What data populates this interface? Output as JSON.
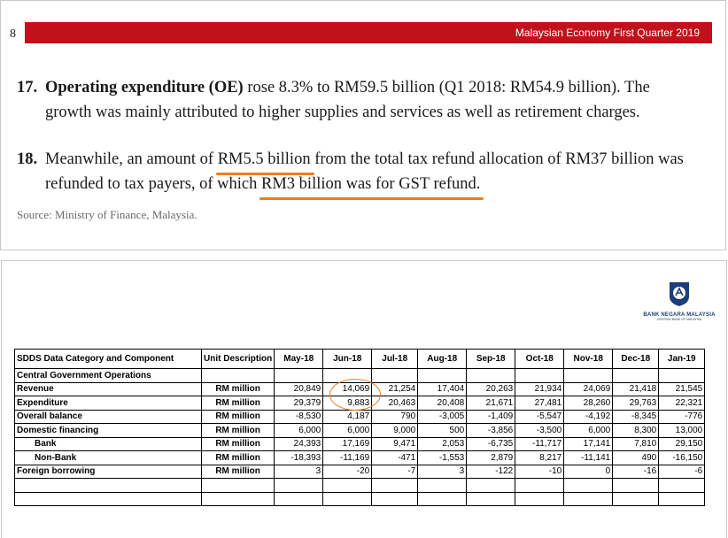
{
  "header": {
    "page_number": "8",
    "title": "Malaysian Economy First Quarter 2019",
    "bar_color": "#c1121c"
  },
  "paragraphs": {
    "p17": {
      "number": "17.",
      "bold_lead": "Operating expenditure (OE)",
      "line1_rest": " rose 8.3% to RM59.5 billion (Q1 2018: RM54.9 billion). The",
      "line2": "growth was mainly attributed to higher supplies and services as well as retirement charges."
    },
    "p18": {
      "number": "18.",
      "line1_pre": "Meanwhile, an amount of ",
      "line1_hl": "RM5.5 billion",
      "line1_post": " from the total tax refund allocation of RM37 billion was",
      "line2_pre": "refunded to tax payers, of which ",
      "line2_hl": "RM3 billion was for GST refund."
    },
    "source": "Source: Ministry of Finance, Malaysia."
  },
  "highlight_color": "#f07c1e",
  "logo": {
    "icon": "bnm-shield-icon",
    "name": "BANK NEGARA MALAYSIA",
    "subtitle": "CENTRAL BANK OF MALAYSIA"
  },
  "table": {
    "headers": [
      "SDDS Data Category and Component",
      "Unit Description",
      "May-18",
      "Jun-18",
      "Jul-18",
      "Aug-18",
      "Sep-18",
      "Oct-18",
      "Nov-18",
      "Dec-18",
      "Jan-19"
    ],
    "section": "Central Government Operations",
    "rows": [
      {
        "label": "Revenue",
        "unit": "RM million",
        "values": [
          "20,849",
          "14,069",
          "21,254",
          "17,404",
          "20,263",
          "21,934",
          "24,069",
          "21,418",
          "21,545"
        ]
      },
      {
        "label": "Expenditure",
        "unit": "RM million",
        "values": [
          "29,379",
          "9,883",
          "20,463",
          "20,408",
          "21,671",
          "27,481",
          "28,260",
          "29,763",
          "22,321"
        ]
      },
      {
        "label": "Overall balance",
        "unit": "RM million",
        "values": [
          "-8,530",
          "4,187",
          "790",
          "-3,005",
          "-1,409",
          "-5,547",
          "-4,192",
          "-8,345",
          "-776"
        ]
      },
      {
        "label": "Domestic financing",
        "unit": "RM million",
        "values": [
          "6,000",
          "6,000",
          "9,000",
          "500",
          "-3,856",
          "-3,500",
          "6,000",
          "8,300",
          "13,000"
        ]
      },
      {
        "label": "Bank",
        "unit": "RM million",
        "values": [
          "24,393",
          "17,169",
          "9,471",
          "2,053",
          "-6,735",
          "-11,717",
          "17,141",
          "7,810",
          "29,150"
        ],
        "indent": true
      },
      {
        "label": "Non-Bank",
        "unit": "RM million",
        "values": [
          "-18,393",
          "-11,169",
          "-471",
          "-1,553",
          "2,879",
          "8,217",
          "-11,141",
          "490",
          "-16,150"
        ],
        "indent": true
      },
      {
        "label": "Foreign borrowing",
        "unit": "RM million",
        "values": [
          "3",
          "-20",
          "-7",
          "3",
          "-122",
          "-10",
          "0",
          "-16",
          "-6"
        ]
      }
    ]
  }
}
